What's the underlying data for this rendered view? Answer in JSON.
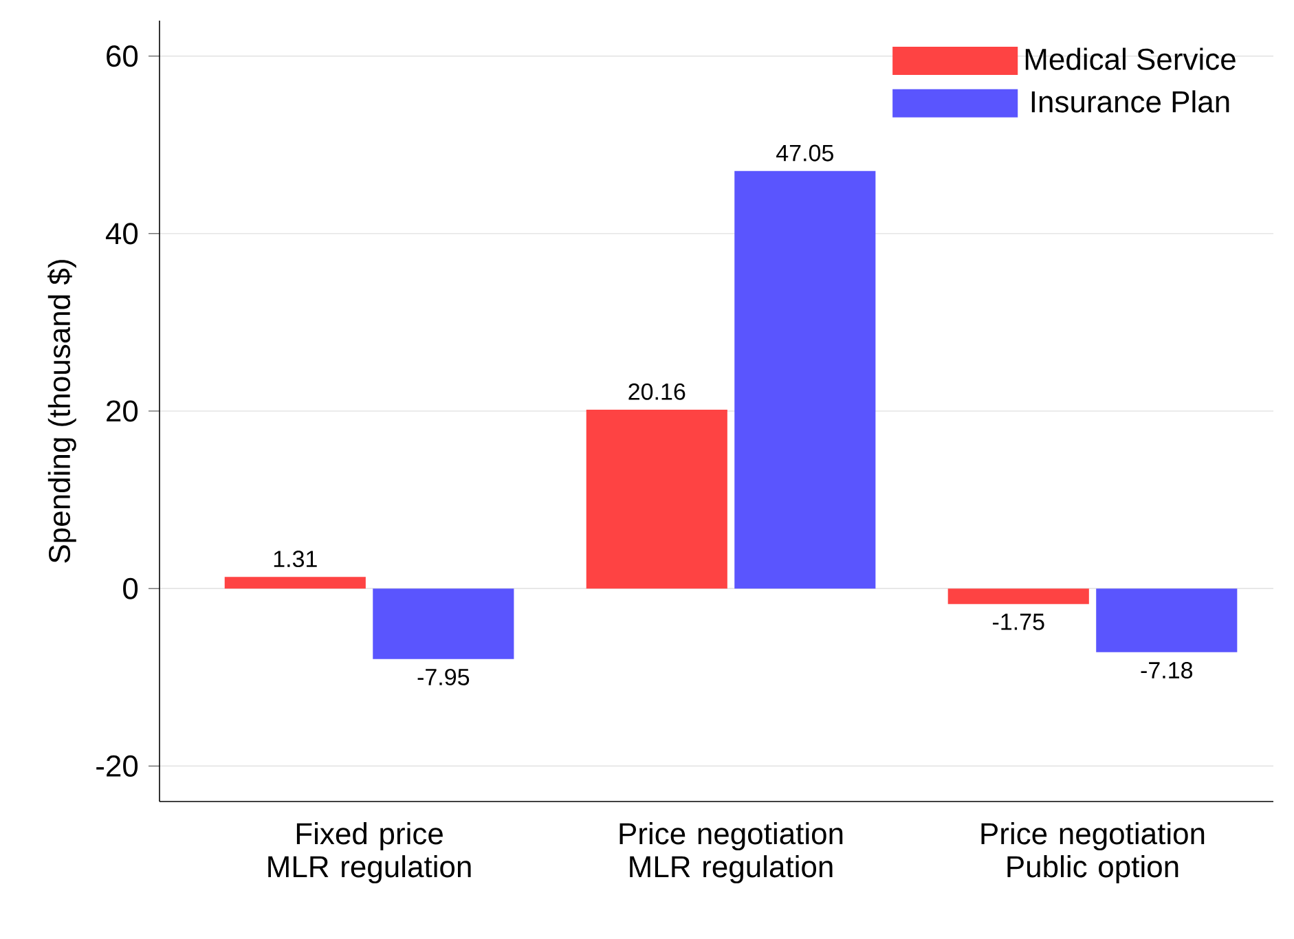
{
  "chart_data": {
    "type": "bar",
    "ylabel": "Spending (thousand $)",
    "categories": [
      "Fixed price MLR regulation",
      "Price negotiation MLR regulation",
      "Price negotiation Public option"
    ],
    "series": [
      {
        "name": "Medical Service",
        "color": "#fe4343",
        "values": [
          1.31,
          20.16,
          -1.75
        ]
      },
      {
        "name": "Insurance Plan",
        "color": "#5a55fe",
        "values": [
          -7.95,
          47.05,
          -7.18
        ]
      }
    ],
    "ylim": [
      -24,
      64
    ],
    "yticks": [
      -20,
      0,
      20,
      40,
      60
    ],
    "grid": "y",
    "legend": "top right",
    "data_labels": true
  }
}
